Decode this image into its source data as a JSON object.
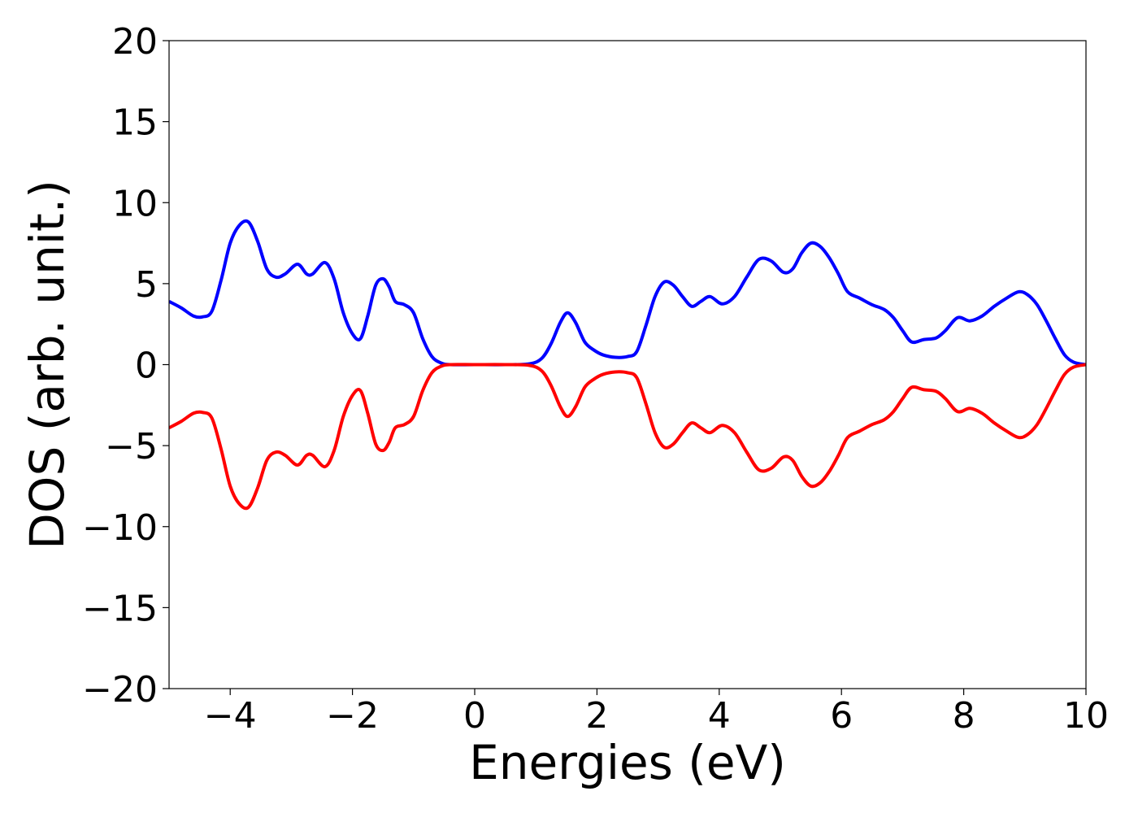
{
  "chart_data": {
    "type": "line",
    "title": "",
    "xlabel": "Energies (eV)",
    "ylabel": "DOS (arb. unit.)",
    "xlim": [
      -5,
      10
    ],
    "ylim": [
      -20,
      20
    ],
    "xticks": [
      -4,
      -2,
      0,
      2,
      4,
      6,
      8,
      10
    ],
    "yticks": [
      -20,
      -15,
      -10,
      -5,
      0,
      5,
      10,
      15,
      20
    ],
    "xtick_labels": [
      "−4",
      "−2",
      "0",
      "2",
      "4",
      "6",
      "8",
      "10"
    ],
    "ytick_labels": [
      "−20",
      "−15",
      "−10",
      "−5",
      "0",
      "5",
      "10",
      "15",
      "20"
    ],
    "grid": false,
    "legend": "none",
    "series": [
      {
        "color": "#0000ff",
        "x": [
          -5.0,
          -4.8,
          -4.6,
          -4.45,
          -4.3,
          -4.15,
          -4.0,
          -3.85,
          -3.7,
          -3.55,
          -3.4,
          -3.25,
          -3.1,
          -2.9,
          -2.75,
          -2.65,
          -2.45,
          -2.3,
          -2.15,
          -2.0,
          -1.87,
          -1.75,
          -1.62,
          -1.5,
          -1.4,
          -1.3,
          -1.15,
          -1.0,
          -0.85,
          -0.7,
          -0.55,
          -0.4,
          0.0,
          0.5,
          0.9,
          1.1,
          1.25,
          1.4,
          1.52,
          1.65,
          1.8,
          1.95,
          2.1,
          2.3,
          2.5,
          2.65,
          2.8,
          2.95,
          3.1,
          3.25,
          3.4,
          3.55,
          3.7,
          3.85,
          4.05,
          4.25,
          4.45,
          4.65,
          4.85,
          5.05,
          5.2,
          5.35,
          5.5,
          5.65,
          5.8,
          5.95,
          6.1,
          6.3,
          6.5,
          6.7,
          6.85,
          7.0,
          7.15,
          7.35,
          7.55,
          7.7,
          7.9,
          8.1,
          8.3,
          8.5,
          8.7,
          8.9,
          9.05,
          9.2,
          9.35,
          9.5,
          9.65,
          9.8,
          10.0
        ],
        "y": [
          3.9,
          3.5,
          3.0,
          2.95,
          3.3,
          5.2,
          7.5,
          8.6,
          8.8,
          7.6,
          5.9,
          5.4,
          5.6,
          6.2,
          5.6,
          5.6,
          6.3,
          5.3,
          3.2,
          1.9,
          1.6,
          3.0,
          4.9,
          5.3,
          4.8,
          3.9,
          3.7,
          3.2,
          1.6,
          0.5,
          0.1,
          0.0,
          0.0,
          0.0,
          0.05,
          0.4,
          1.3,
          2.6,
          3.2,
          2.6,
          1.4,
          0.9,
          0.6,
          0.45,
          0.5,
          0.8,
          2.4,
          4.2,
          5.1,
          4.9,
          4.2,
          3.6,
          3.9,
          4.2,
          3.75,
          4.2,
          5.4,
          6.5,
          6.4,
          5.7,
          5.9,
          6.9,
          7.5,
          7.3,
          6.6,
          5.6,
          4.5,
          4.1,
          3.7,
          3.4,
          2.9,
          2.1,
          1.4,
          1.55,
          1.65,
          2.1,
          2.9,
          2.7,
          3.0,
          3.6,
          4.1,
          4.5,
          4.3,
          3.7,
          2.7,
          1.6,
          0.6,
          0.15,
          0.0
        ]
      },
      {
        "color": "#ff0000",
        "x": [
          -5.0,
          -4.8,
          -4.6,
          -4.45,
          -4.3,
          -4.15,
          -4.0,
          -3.85,
          -3.7,
          -3.55,
          -3.4,
          -3.25,
          -3.1,
          -2.9,
          -2.75,
          -2.65,
          -2.45,
          -2.3,
          -2.15,
          -2.0,
          -1.87,
          -1.75,
          -1.62,
          -1.5,
          -1.4,
          -1.3,
          -1.15,
          -1.0,
          -0.85,
          -0.7,
          -0.55,
          -0.4,
          0.0,
          0.5,
          0.9,
          1.1,
          1.25,
          1.4,
          1.52,
          1.65,
          1.8,
          1.95,
          2.1,
          2.3,
          2.5,
          2.65,
          2.8,
          2.95,
          3.1,
          3.25,
          3.4,
          3.55,
          3.7,
          3.85,
          4.05,
          4.25,
          4.45,
          4.65,
          4.85,
          5.05,
          5.2,
          5.35,
          5.5,
          5.65,
          5.8,
          5.95,
          6.1,
          6.3,
          6.5,
          6.7,
          6.85,
          7.0,
          7.15,
          7.35,
          7.55,
          7.7,
          7.9,
          8.1,
          8.3,
          8.5,
          8.7,
          8.9,
          9.05,
          9.2,
          9.35,
          9.5,
          9.65,
          9.8,
          10.0
        ],
        "y": [
          -3.9,
          -3.5,
          -3.0,
          -2.95,
          -3.3,
          -5.2,
          -7.5,
          -8.6,
          -8.8,
          -7.6,
          -5.9,
          -5.4,
          -5.6,
          -6.2,
          -5.6,
          -5.6,
          -6.3,
          -5.3,
          -3.2,
          -1.9,
          -1.6,
          -3.0,
          -4.9,
          -5.3,
          -4.8,
          -3.9,
          -3.7,
          -3.2,
          -1.6,
          -0.5,
          -0.1,
          0.0,
          0.0,
          0.0,
          -0.05,
          -0.4,
          -1.3,
          -2.6,
          -3.2,
          -2.6,
          -1.4,
          -0.9,
          -0.6,
          -0.45,
          -0.5,
          -0.8,
          -2.4,
          -4.2,
          -5.1,
          -4.9,
          -4.2,
          -3.6,
          -3.9,
          -4.2,
          -3.75,
          -4.2,
          -5.4,
          -6.5,
          -6.4,
          -5.7,
          -5.9,
          -6.9,
          -7.5,
          -7.3,
          -6.6,
          -5.6,
          -4.5,
          -4.1,
          -3.7,
          -3.4,
          -2.9,
          -2.1,
          -1.4,
          -1.55,
          -1.65,
          -2.1,
          -2.9,
          -2.7,
          -3.0,
          -3.6,
          -4.1,
          -4.5,
          -4.3,
          -3.7,
          -2.7,
          -1.6,
          -0.6,
          -0.15,
          0.0
        ]
      }
    ]
  }
}
